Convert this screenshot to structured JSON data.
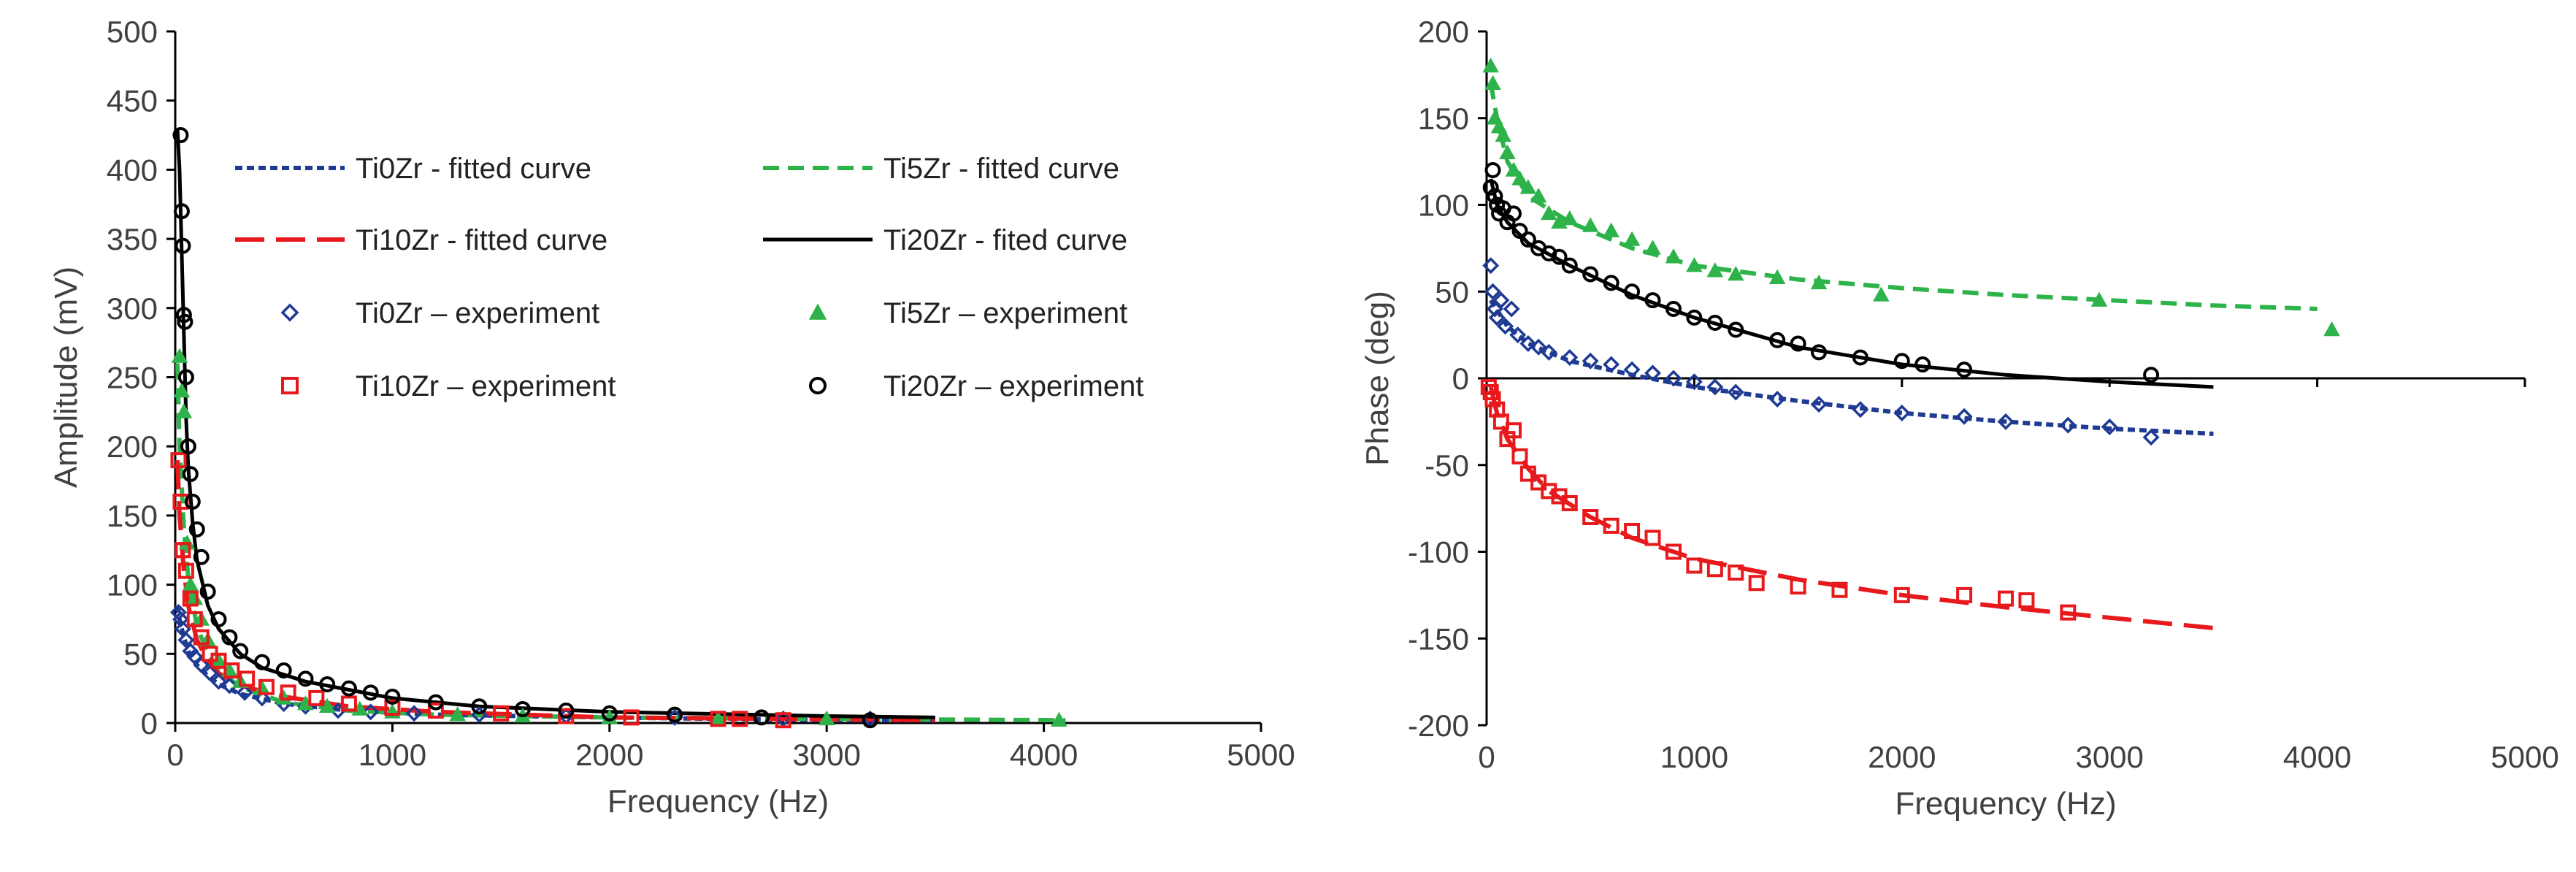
{
  "chart_data": [
    {
      "type": "scatter",
      "title": "",
      "xlabel": "Frequency (Hz)",
      "ylabel": "Amplitude (mV)",
      "xlim": [
        0,
        5000
      ],
      "ylim": [
        0,
        500
      ],
      "xticks": [
        0,
        1000,
        2000,
        3000,
        4000,
        5000
      ],
      "yticks": [
        0,
        50,
        100,
        150,
        200,
        250,
        300,
        350,
        400,
        450,
        500
      ],
      "grid": false,
      "legend_position": "top-right",
      "series": [
        {
          "name": "Ti0Zr - fitted curve",
          "style": "line",
          "dash": "short-dash",
          "color": "#1f3a93",
          "x": [
            10,
            20,
            40,
            60,
            100,
            150,
            200,
            300,
            500,
            800,
            1200,
            2000,
            3000,
            3500
          ],
          "y": [
            85,
            75,
            62,
            52,
            42,
            34,
            28,
            21,
            14,
            9,
            6,
            4,
            2,
            2
          ]
        },
        {
          "name": "Ti5Zr - fitted curve",
          "style": "line",
          "dash": "dash",
          "color": "#2db34a",
          "x": [
            10,
            20,
            40,
            60,
            100,
            150,
            200,
            300,
            500,
            800,
            1200,
            2000,
            3000,
            4100
          ],
          "y": [
            260,
            200,
            140,
            105,
            70,
            50,
            38,
            26,
            15,
            9,
            6,
            4,
            3,
            2
          ]
        },
        {
          "name": "Ti10Zr - fitted curve",
          "style": "line",
          "dash": "long-dash",
          "color": "#e8191c",
          "x": [
            10,
            20,
            40,
            60,
            100,
            150,
            200,
            300,
            500,
            800,
            1200,
            2000,
            2800,
            3500
          ],
          "y": [
            190,
            150,
            110,
            85,
            60,
            45,
            36,
            27,
            19,
            12,
            8,
            4,
            3,
            2
          ]
        },
        {
          "name": "Ti20Zr - fited curve",
          "style": "line",
          "dash": "solid",
          "color": "#000000",
          "x": [
            10,
            20,
            30,
            40,
            50,
            60,
            80,
            100,
            150,
            200,
            300,
            400,
            600,
            800,
            1000,
            1400,
            2000,
            3000,
            3500
          ],
          "y": [
            430,
            400,
            340,
            280,
            220,
            185,
            145,
            118,
            85,
            68,
            50,
            40,
            30,
            24,
            18,
            12,
            8,
            5,
            4
          ]
        },
        {
          "name": "Ti0Zr – experiment",
          "style": "marker",
          "marker": "diamond",
          "color": "#1f3a93",
          "x": [
            15,
            25,
            35,
            50,
            70,
            90,
            120,
            160,
            200,
            250,
            320,
            400,
            500,
            600,
            750,
            900,
            1100,
            1400,
            1800,
            2300,
            2800,
            3200
          ],
          "y": [
            80,
            75,
            68,
            60,
            52,
            48,
            42,
            36,
            30,
            27,
            22,
            18,
            14,
            12,
            9,
            8,
            7,
            6,
            5,
            4,
            3,
            3
          ]
        },
        {
          "name": "Ti5Zr – experiment",
          "style": "marker",
          "marker": "triangle",
          "color": "#2db34a",
          "x": [
            20,
            30,
            40,
            55,
            70,
            90,
            120,
            150,
            200,
            250,
            300,
            400,
            500,
            600,
            700,
            850,
            1000,
            1300,
            1600,
            2000,
            2500,
            3000,
            4070
          ],
          "y": [
            265,
            240,
            225,
            130,
            100,
            90,
            75,
            60,
            45,
            38,
            30,
            25,
            18,
            14,
            12,
            10,
            8,
            6,
            5,
            4,
            3,
            3,
            2
          ]
        },
        {
          "name": "Ti10Zr – experiment",
          "style": "marker",
          "marker": "square",
          "color": "#e8191c",
          "x": [
            15,
            25,
            35,
            50,
            70,
            90,
            120,
            160,
            200,
            260,
            330,
            420,
            520,
            650,
            800,
            1000,
            1200,
            1500,
            1800,
            2100,
            2500,
            2600,
            2800
          ],
          "y": [
            190,
            160,
            125,
            110,
            90,
            75,
            62,
            50,
            45,
            38,
            32,
            26,
            22,
            18,
            14,
            11,
            9,
            7,
            5,
            4,
            3,
            3,
            2
          ]
        },
        {
          "name": "Ti20Zr – experiment",
          "style": "marker",
          "marker": "circle",
          "color": "#000000",
          "x": [
            25,
            30,
            35,
            40,
            45,
            50,
            60,
            70,
            80,
            100,
            120,
            150,
            200,
            250,
            300,
            400,
            500,
            600,
            700,
            800,
            900,
            1000,
            1200,
            1400,
            1600,
            1800,
            2000,
            2300,
            2700,
            3200
          ],
          "y": [
            425,
            370,
            345,
            295,
            290,
            250,
            200,
            180,
            160,
            140,
            120,
            95,
            75,
            62,
            52,
            44,
            38,
            32,
            28,
            25,
            22,
            19,
            15,
            12,
            10,
            9,
            7,
            6,
            4,
            2
          ]
        }
      ]
    },
    {
      "type": "scatter",
      "title": "",
      "xlabel": "Frequency (Hz)",
      "ylabel": "Phase (deg)",
      "xlim": [
        0,
        5000
      ],
      "ylim": [
        -200,
        200
      ],
      "xticks": [
        0,
        1000,
        2000,
        3000,
        4000,
        5000
      ],
      "yticks": [
        -200,
        -150,
        -100,
        -50,
        0,
        50,
        100,
        150,
        200
      ],
      "grid": false,
      "series": [
        {
          "name": "Ti0Zr - fitted curve",
          "style": "line",
          "dash": "short-dash",
          "color": "#1f3a93",
          "x": [
            20,
            100,
            200,
            400,
            700,
            1000,
            1500,
            2000,
            2500,
            3000,
            3500
          ],
          "y": [
            45,
            30,
            20,
            10,
            2,
            -5,
            -13,
            -20,
            -25,
            -29,
            -32
          ]
        },
        {
          "name": "Ti5Zr - fitted curve",
          "style": "line",
          "dash": "dash",
          "color": "#2db34a",
          "x": [
            20,
            50,
            100,
            200,
            400,
            700,
            1000,
            1500,
            2000,
            2500,
            3000,
            3500,
            4000
          ],
          "y": [
            170,
            150,
            125,
            105,
            90,
            75,
            65,
            57,
            52,
            48,
            45,
            42,
            40
          ]
        },
        {
          "name": "Ti10Zr - fitted curve",
          "style": "line",
          "dash": "long-dash",
          "color": "#e8191c",
          "x": [
            20,
            50,
            100,
            200,
            300,
            500,
            700,
            1000,
            1500,
            2000,
            2500,
            3000,
            3500
          ],
          "y": [
            -5,
            -20,
            -35,
            -52,
            -65,
            -80,
            -92,
            -104,
            -116,
            -125,
            -132,
            -138,
            -144
          ]
        },
        {
          "name": "Ti20Zr - fited curve",
          "style": "line",
          "dash": "solid",
          "color": "#000000",
          "x": [
            20,
            50,
            100,
            200,
            400,
            700,
            1000,
            1500,
            2000,
            2500,
            3000,
            3500
          ],
          "y": [
            115,
            100,
            90,
            78,
            65,
            48,
            35,
            18,
            8,
            2,
            -2,
            -5
          ]
        },
        {
          "name": "Ti0Zr – experiment",
          "style": "marker",
          "marker": "diamond",
          "color": "#1f3a93",
          "x": [
            20,
            30,
            40,
            50,
            70,
            90,
            120,
            150,
            200,
            250,
            300,
            400,
            500,
            600,
            700,
            800,
            900,
            1000,
            1100,
            1200,
            1400,
            1600,
            1800,
            2000,
            2300,
            2500,
            2800,
            3000,
            3200
          ],
          "y": [
            65,
            50,
            40,
            35,
            45,
            30,
            40,
            25,
            20,
            18,
            15,
            12,
            10,
            8,
            5,
            3,
            0,
            -2,
            -5,
            -8,
            -12,
            -15,
            -18,
            -20,
            -22,
            -25,
            -27,
            -28,
            -34
          ]
        },
        {
          "name": "Ti5Zr – experiment",
          "style": "marker",
          "marker": "triangle",
          "color": "#2db34a",
          "x": [
            20,
            30,
            40,
            60,
            80,
            100,
            130,
            160,
            200,
            250,
            300,
            350,
            400,
            500,
            600,
            700,
            800,
            900,
            1000,
            1100,
            1200,
            1400,
            1600,
            1900,
            2950,
            4070
          ],
          "y": [
            180,
            170,
            150,
            145,
            140,
            130,
            120,
            115,
            110,
            105,
            95,
            90,
            92,
            88,
            85,
            80,
            75,
            70,
            65,
            62,
            60,
            58,
            55,
            48,
            45,
            28
          ]
        },
        {
          "name": "Ti10Zr – experiment",
          "style": "marker",
          "marker": "square",
          "color": "#e8191c",
          "x": [
            10,
            20,
            30,
            50,
            70,
            100,
            130,
            160,
            200,
            250,
            300,
            350,
            400,
            500,
            600,
            700,
            800,
            900,
            1000,
            1100,
            1200,
            1300,
            1500,
            1700,
            2000,
            2300,
            2500,
            2600,
            2800
          ],
          "y": [
            -5,
            -8,
            -12,
            -18,
            -25,
            -35,
            -30,
            -45,
            -55,
            -60,
            -65,
            -68,
            -72,
            -80,
            -85,
            -88,
            -92,
            -100,
            -108,
            -110,
            -112,
            -118,
            -120,
            -122,
            -125,
            -125,
            -127,
            -128,
            -135
          ]
        },
        {
          "name": "Ti20Zr – experiment",
          "style": "marker",
          "marker": "circle",
          "color": "#000000",
          "x": [
            20,
            30,
            40,
            50,
            60,
            80,
            100,
            130,
            160,
            200,
            250,
            300,
            350,
            400,
            500,
            600,
            700,
            800,
            900,
            1000,
            1100,
            1200,
            1400,
            1500,
            1600,
            1800,
            2000,
            2100,
            2300,
            3200
          ],
          "y": [
            110,
            120,
            105,
            100,
            95,
            98,
            90,
            95,
            85,
            80,
            75,
            72,
            70,
            65,
            60,
            55,
            50,
            45,
            40,
            35,
            32,
            28,
            22,
            20,
            15,
            12,
            10,
            8,
            5,
            2
          ]
        }
      ]
    }
  ]
}
